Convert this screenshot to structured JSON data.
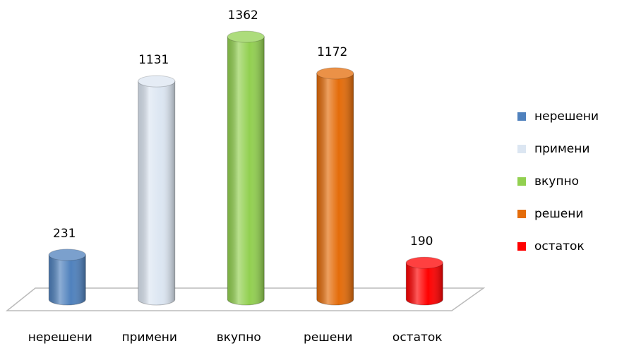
{
  "chart_data": {
    "type": "bar",
    "categories": [
      "нерешени",
      "примени",
      "вкупно",
      "решени",
      "остаток"
    ],
    "series": [
      {
        "name": "нерешени",
        "color": "#4f81bd"
      },
      {
        "name": "примени",
        "color": "#dce6f2"
      },
      {
        "name": "вкупно",
        "color": "#92d050"
      },
      {
        "name": "решени",
        "color": "#e46c0a"
      },
      {
        "name": "остаток",
        "color": "#ff0000"
      }
    ],
    "values": [
      231,
      1131,
      1362,
      1172,
      190
    ],
    "legend": "right"
  }
}
